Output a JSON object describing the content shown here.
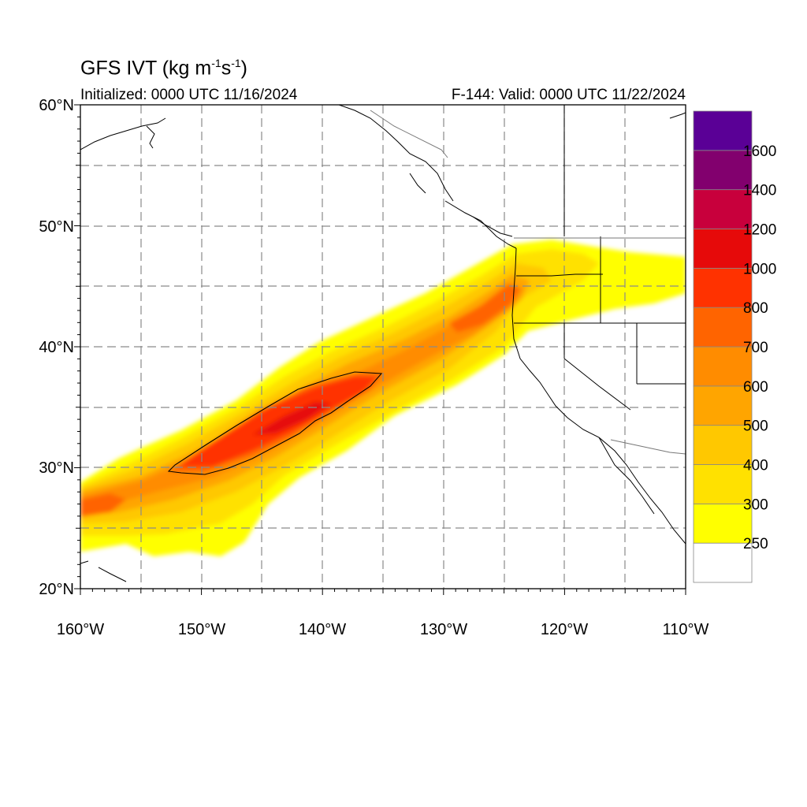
{
  "title": {
    "prefix": "GFS IVT (kg m",
    "exp1": "-1",
    "middle": "s",
    "exp2": "-1",
    "suffix": ")"
  },
  "initialized_label": "Initialized: 0000 UTC 11/16/2024",
  "valid_label": "F-144: Valid: 0000 UTC 11/22/2024",
  "axes": {
    "lat_ticks": [
      {
        "label": "60°N",
        "lat": 60
      },
      {
        "label": "50°N",
        "lat": 50
      },
      {
        "label": "40°N",
        "lat": 40
      },
      {
        "label": "30°N",
        "lat": 30
      },
      {
        "label": "20°N",
        "lat": 20
      }
    ],
    "lon_ticks": [
      {
        "label": "160°W",
        "lon": -160
      },
      {
        "label": "150°W",
        "lon": -150
      },
      {
        "label": "140°W",
        "lon": -140
      },
      {
        "label": "130°W",
        "lon": -130
      },
      {
        "label": "120°W",
        "lon": -120
      },
      {
        "label": "110°W",
        "lon": -110
      }
    ],
    "lat_range": [
      20,
      60
    ],
    "lon_range": [
      -160,
      -110
    ],
    "grid_spacing_deg": 5,
    "grid_style": "dashed"
  },
  "colorbar": {
    "labels": [
      "250",
      "300",
      "400",
      "500",
      "600",
      "700",
      "800",
      "1000",
      "1200",
      "1400",
      "1600"
    ],
    "levels": [
      250,
      300,
      400,
      500,
      600,
      700,
      800,
      1000,
      1200,
      1400,
      1600
    ],
    "colors": [
      "#ffffff",
      "#ffff00",
      "#ffe100",
      "#ffc800",
      "#ffa500",
      "#ff8c00",
      "#ff6400",
      "#ff3200",
      "#e60a0a",
      "#c8003c",
      "#82006e",
      "#5a0096"
    ]
  },
  "features": {
    "atmospheric_river": "IVT plume from ~160°W 27°N to the Pacific Northwest coast near 45°N",
    "contour_level": 800
  }
}
